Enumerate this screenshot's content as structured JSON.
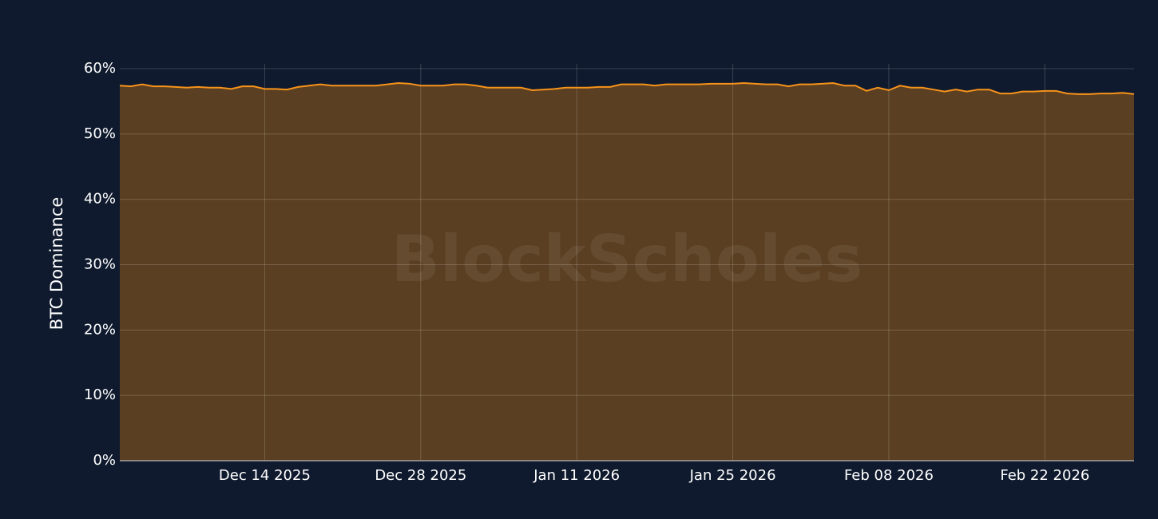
{
  "chart_data": {
    "type": "area",
    "y_label": "BTC Dominance",
    "watermark": "BlockScholes",
    "x": [
      "2025-12-01",
      "2025-12-02",
      "2025-12-03",
      "2025-12-04",
      "2025-12-05",
      "2025-12-06",
      "2025-12-07",
      "2025-12-08",
      "2025-12-09",
      "2025-12-10",
      "2025-12-11",
      "2025-12-12",
      "2025-12-13",
      "2025-12-14",
      "2025-12-15",
      "2025-12-16",
      "2025-12-17",
      "2025-12-18",
      "2025-12-19",
      "2025-12-20",
      "2025-12-21",
      "2025-12-22",
      "2025-12-23",
      "2025-12-24",
      "2025-12-25",
      "2025-12-26",
      "2025-12-27",
      "2025-12-28",
      "2025-12-29",
      "2025-12-30",
      "2025-12-31",
      "2026-01-01",
      "2026-01-02",
      "2026-01-03",
      "2026-01-04",
      "2026-01-05",
      "2026-01-06",
      "2026-01-07",
      "2026-01-08",
      "2026-01-09",
      "2026-01-10",
      "2026-01-11",
      "2026-01-12",
      "2026-01-13",
      "2026-01-14",
      "2026-01-15",
      "2026-01-16",
      "2026-01-17",
      "2026-01-18",
      "2026-01-19",
      "2026-01-20",
      "2026-01-21",
      "2026-01-22",
      "2026-01-23",
      "2026-01-24",
      "2026-01-25",
      "2026-01-26",
      "2026-01-27",
      "2026-01-28",
      "2026-01-29",
      "2026-01-30",
      "2026-01-31",
      "2026-02-01",
      "2026-02-02",
      "2026-02-03",
      "2026-02-04",
      "2026-02-05",
      "2026-02-06",
      "2026-02-07",
      "2026-02-08",
      "2026-02-09",
      "2026-02-10",
      "2026-02-11",
      "2026-02-12",
      "2026-02-13",
      "2026-02-14",
      "2026-02-15",
      "2026-02-16",
      "2026-02-17",
      "2026-02-18",
      "2026-02-19",
      "2026-02-20",
      "2026-02-21",
      "2026-02-22",
      "2026-02-23",
      "2026-02-24",
      "2026-02-25",
      "2026-02-26",
      "2026-02-27",
      "2026-02-28",
      "2026-03-01",
      "2026-03-02"
    ],
    "values": [
      57.4,
      57.3,
      57.6,
      57.3,
      57.3,
      57.2,
      57.1,
      57.2,
      57.1,
      57.1,
      56.9,
      57.3,
      57.3,
      56.9,
      56.9,
      56.8,
      57.2,
      57.4,
      57.6,
      57.4,
      57.4,
      57.4,
      57.4,
      57.4,
      57.6,
      57.8,
      57.7,
      57.4,
      57.4,
      57.4,
      57.6,
      57.6,
      57.4,
      57.1,
      57.1,
      57.1,
      57.1,
      56.7,
      56.8,
      56.9,
      57.1,
      57.1,
      57.1,
      57.2,
      57.2,
      57.6,
      57.6,
      57.6,
      57.4,
      57.6,
      57.6,
      57.6,
      57.6,
      57.7,
      57.7,
      57.7,
      57.8,
      57.7,
      57.6,
      57.6,
      57.3,
      57.6,
      57.6,
      57.7,
      57.8,
      57.4,
      57.4,
      56.6,
      57.1,
      56.7,
      57.4,
      57.1,
      57.1,
      56.8,
      56.5,
      56.8,
      56.5,
      56.8,
      56.8,
      56.2,
      56.2,
      56.5,
      56.5,
      56.6,
      56.6,
      56.2,
      56.1,
      56.1,
      56.2,
      56.2,
      56.3,
      56.1
    ],
    "color": "#f7931a",
    "fill": "#5a3f22",
    "xlim": [
      "2025-12-01",
      "2026-03-02"
    ],
    "xticks": [
      {
        "value": "2025-12-14",
        "label": "Dec 14 2025"
      },
      {
        "value": "2025-12-28",
        "label": "Dec 28 2025"
      },
      {
        "value": "2026-01-11",
        "label": "Jan 11 2026"
      },
      {
        "value": "2026-01-25",
        "label": "Jan 25 2026"
      },
      {
        "value": "2026-02-08",
        "label": "Feb 08 2026"
      },
      {
        "value": "2026-02-22",
        "label": "Feb 22 2026"
      }
    ],
    "ylim": [
      0,
      60
    ],
    "yticks": [
      {
        "value": 0,
        "label": "0%"
      },
      {
        "value": 10,
        "label": "10%"
      },
      {
        "value": 20,
        "label": "20%"
      },
      {
        "value": 30,
        "label": "30%"
      },
      {
        "value": 40,
        "label": "40%"
      },
      {
        "value": 50,
        "label": "50%"
      },
      {
        "value": 60,
        "label": "60%"
      }
    ],
    "grid": true
  }
}
